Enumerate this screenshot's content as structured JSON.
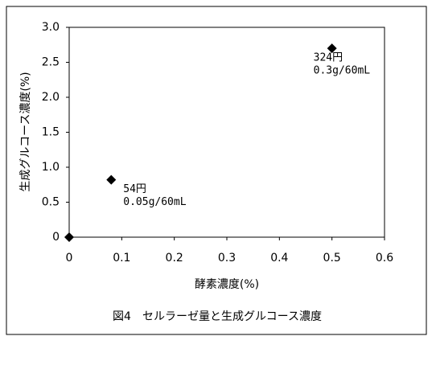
{
  "chart_data": {
    "type": "scatter",
    "caption": "図4　セルラーゼ量と生成グルコース濃度",
    "x_label": "酵素濃度(%)",
    "y_label": "生成グルコース濃度(%)",
    "x": [
      0,
      0.08,
      0.5
    ],
    "values": [
      0,
      0.82,
      2.7
    ],
    "color": "#000000",
    "xlim": [
      0,
      0.6
    ],
    "xticks": [
      0,
      0.1,
      0.2,
      0.3,
      0.4,
      0.5,
      0.6
    ],
    "ylim": [
      0,
      3.0
    ],
    "yticks": [
      0,
      0.5,
      {
        "value": 1,
        "label": "1.0"
      },
      1.5,
      {
        "value": 2,
        "label": "2.0"
      },
      2.5,
      {
        "value": 3,
        "label": "3.0"
      }
    ],
    "annotations": [
      [
        "54円",
        "0.05g/60mL"
      ],
      [
        "324円",
        "0.3g/60mL"
      ]
    ]
  }
}
